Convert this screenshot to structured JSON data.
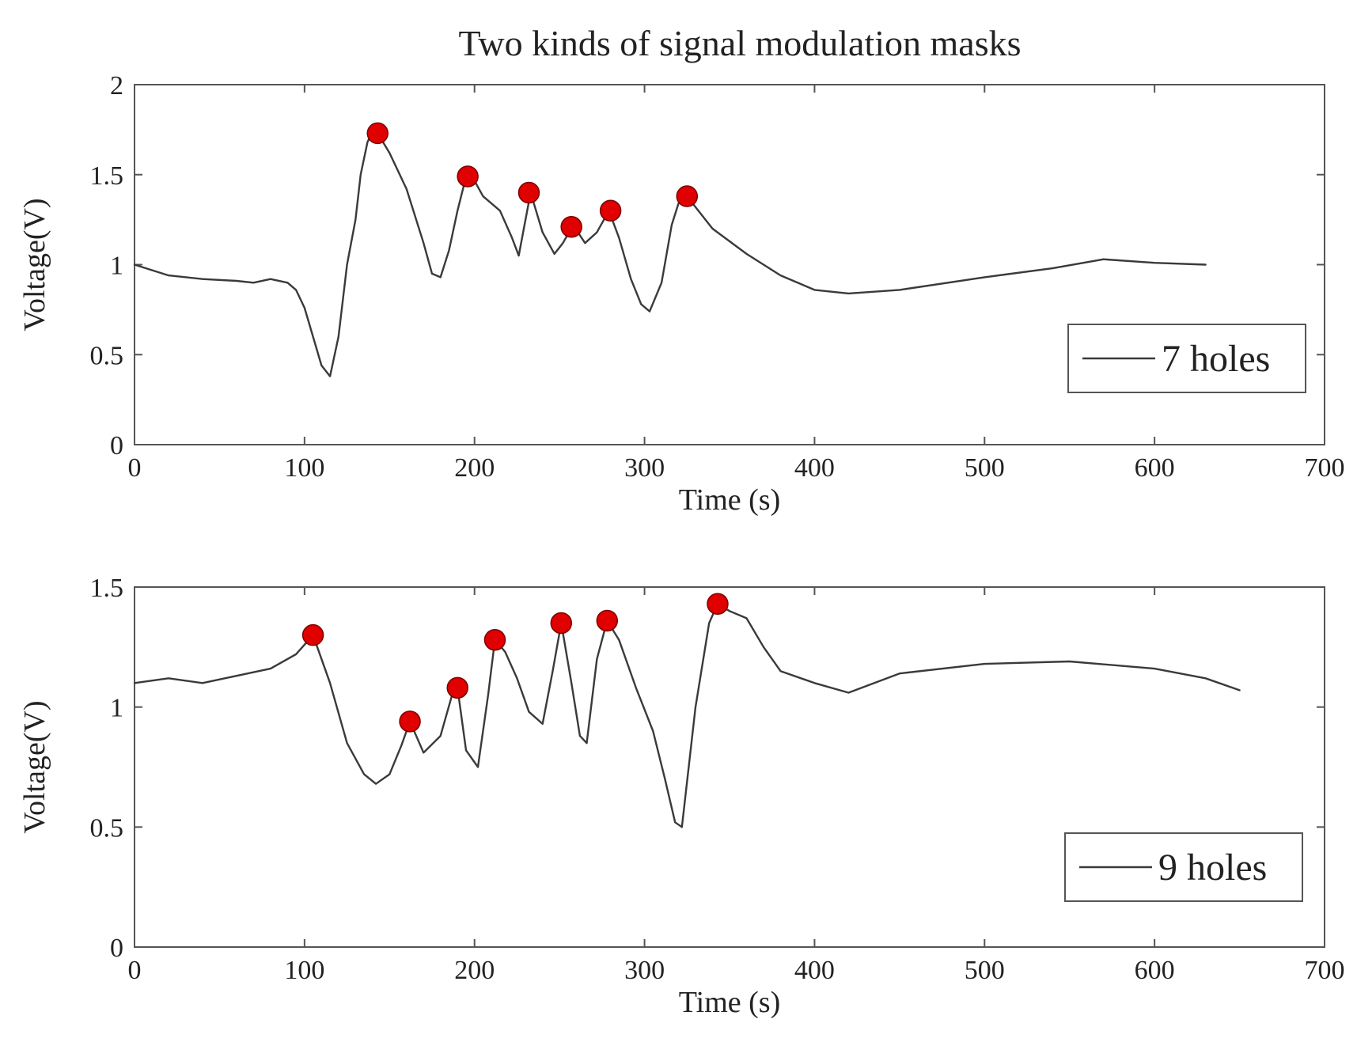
{
  "title": "Two kinds of signal modulation masks",
  "colors": {
    "line": "#3a3a3a",
    "marker": "#e00000",
    "axes": "#555555",
    "text": "#222222"
  },
  "chart_data": [
    {
      "type": "line",
      "xlabel": "Time (s)",
      "ylabel": "Voltage(V)",
      "xlim": [
        0,
        700
      ],
      "ylim": [
        0,
        2
      ],
      "xticks": [
        0,
        100,
        200,
        300,
        400,
        500,
        600,
        700
      ],
      "yticks": [
        0,
        0.5,
        1,
        1.5,
        2
      ],
      "legend": {
        "label": "7 holes",
        "location": "lower-right"
      },
      "series": [
        {
          "name": "7 holes",
          "x": [
            0,
            20,
            40,
            60,
            70,
            80,
            90,
            95,
            100,
            105,
            110,
            115,
            120,
            125,
            130,
            133,
            137,
            140,
            145,
            150,
            160,
            170,
            175,
            180,
            185,
            190,
            194,
            198,
            205,
            215,
            222,
            226,
            229,
            233,
            240,
            247,
            252,
            258,
            265,
            272,
            279,
            285,
            292,
            298,
            303,
            310,
            316,
            320,
            325,
            340,
            360,
            380,
            400,
            420,
            450,
            500,
            540,
            570,
            600,
            630
          ],
          "y": [
            1.0,
            0.94,
            0.92,
            0.91,
            0.9,
            0.92,
            0.9,
            0.86,
            0.76,
            0.6,
            0.44,
            0.38,
            0.6,
            1.0,
            1.25,
            1.5,
            1.68,
            1.74,
            1.7,
            1.62,
            1.42,
            1.12,
            0.95,
            0.93,
            1.08,
            1.3,
            1.45,
            1.5,
            1.38,
            1.3,
            1.15,
            1.05,
            1.2,
            1.4,
            1.18,
            1.06,
            1.12,
            1.22,
            1.12,
            1.18,
            1.3,
            1.15,
            0.92,
            0.78,
            0.74,
            0.9,
            1.22,
            1.34,
            1.38,
            1.2,
            1.06,
            0.94,
            0.86,
            0.84,
            0.86,
            0.93,
            0.98,
            1.03,
            1.01,
            1.0
          ]
        }
      ],
      "markers": [
        {
          "x": 143,
          "y": 1.73
        },
        {
          "x": 196,
          "y": 1.49
        },
        {
          "x": 232,
          "y": 1.4
        },
        {
          "x": 257,
          "y": 1.21
        },
        {
          "x": 280,
          "y": 1.3
        },
        {
          "x": 325,
          "y": 1.38
        }
      ]
    },
    {
      "type": "line",
      "xlabel": "Time (s)",
      "ylabel": "Voltage(V)",
      "xlim": [
        0,
        700
      ],
      "ylim": [
        0,
        1.5
      ],
      "xticks": [
        0,
        100,
        200,
        300,
        400,
        500,
        600,
        700
      ],
      "yticks": [
        0,
        0.5,
        1,
        1.5
      ],
      "legend": {
        "label": "9 holes",
        "location": "lower-right"
      },
      "series": [
        {
          "name": "9 holes",
          "x": [
            0,
            20,
            40,
            60,
            80,
            95,
            105,
            115,
            125,
            135,
            142,
            150,
            157,
            162,
            170,
            180,
            188,
            190,
            195,
            202,
            208,
            212,
            218,
            225,
            232,
            240,
            246,
            251,
            257,
            262,
            266,
            272,
            278,
            285,
            295,
            305,
            312,
            318,
            322,
            330,
            338,
            343,
            350,
            360,
            370,
            380,
            400,
            420,
            450,
            500,
            550,
            600,
            630,
            650
          ],
          "y": [
            1.1,
            1.12,
            1.1,
            1.13,
            1.16,
            1.22,
            1.3,
            1.1,
            0.85,
            0.72,
            0.68,
            0.72,
            0.84,
            0.94,
            0.81,
            0.88,
            1.08,
            1.08,
            0.82,
            0.75,
            1.05,
            1.28,
            1.23,
            1.12,
            0.98,
            0.93,
            1.15,
            1.35,
            1.1,
            0.88,
            0.85,
            1.2,
            1.36,
            1.28,
            1.08,
            0.9,
            0.7,
            0.52,
            0.5,
            1.0,
            1.35,
            1.43,
            1.4,
            1.37,
            1.25,
            1.15,
            1.1,
            1.06,
            1.14,
            1.18,
            1.19,
            1.16,
            1.12,
            1.07
          ]
        }
      ],
      "markers": [
        {
          "x": 105,
          "y": 1.3
        },
        {
          "x": 162,
          "y": 0.94
        },
        {
          "x": 190,
          "y": 1.08
        },
        {
          "x": 212,
          "y": 1.28
        },
        {
          "x": 251,
          "y": 1.35
        },
        {
          "x": 278,
          "y": 1.36
        },
        {
          "x": 343,
          "y": 1.43
        }
      ]
    }
  ]
}
